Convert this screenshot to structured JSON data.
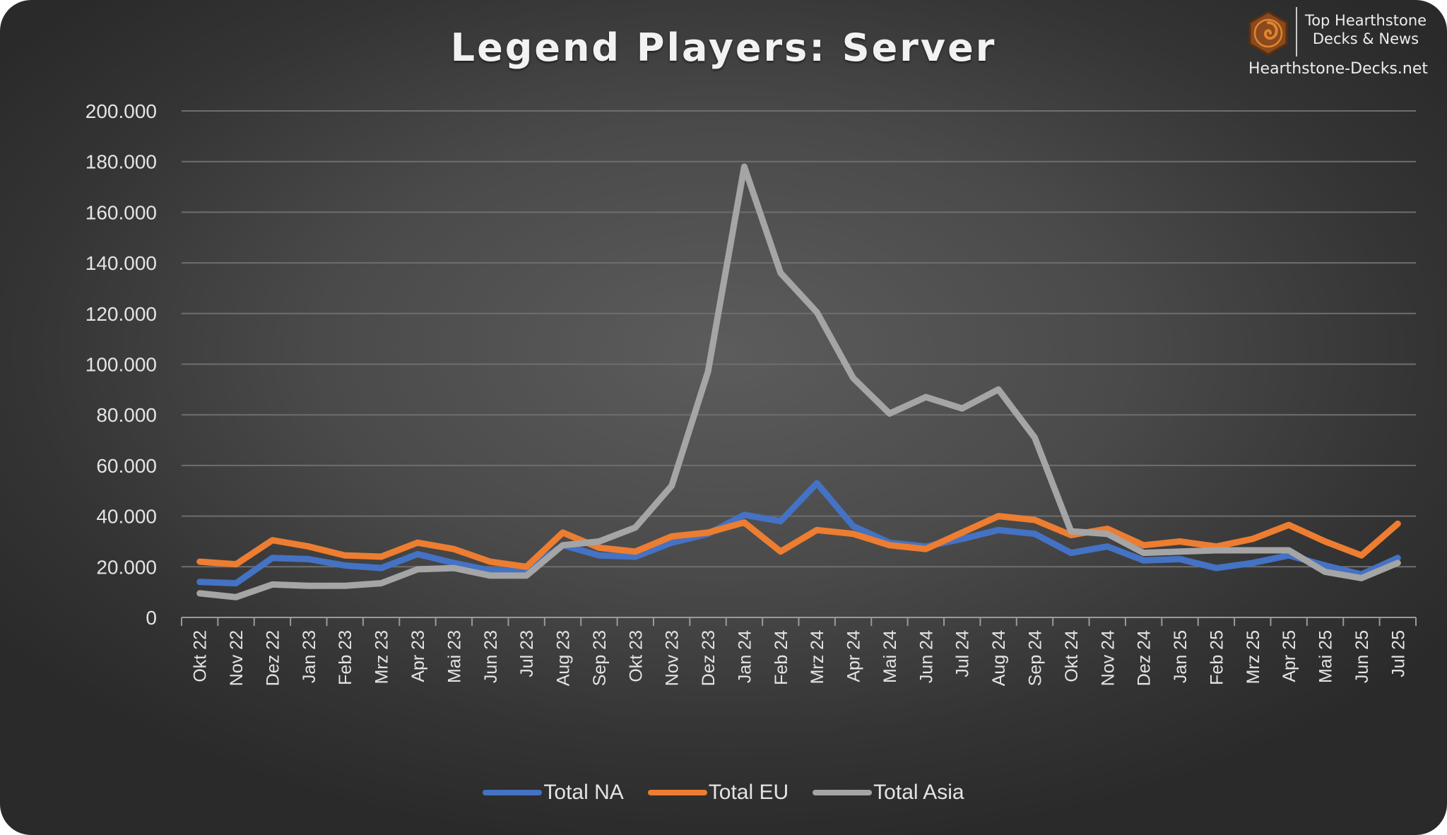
{
  "logo": {
    "line1": "Top Hearthstone",
    "line2": "Decks & News",
    "site": "Hearthstone-Decks.net",
    "icon": "hearthstone-logo-icon",
    "colors": {
      "hex": "#8a4a1e",
      "swirl": "#e0852f"
    }
  },
  "chart_data": {
    "type": "line",
    "title": "Legend Players: Server",
    "xlabel": "",
    "ylabel": "",
    "ylim": [
      0,
      200000
    ],
    "yticks": [
      0,
      20000,
      40000,
      60000,
      80000,
      100000,
      120000,
      140000,
      160000,
      180000,
      200000
    ],
    "ytick_labels": [
      "0",
      "20.000",
      "40.000",
      "60.000",
      "80.000",
      "100.000",
      "120.000",
      "140.000",
      "160.000",
      "180.000",
      "200.000"
    ],
    "grid": true,
    "legend_position": "bottom",
    "categories": [
      "Okt 22",
      "Nov 22",
      "Dez 22",
      "Jan 23",
      "Feb 23",
      "Mrz 23",
      "Apr 23",
      "Mai 23",
      "Jun 23",
      "Jul 23",
      "Aug 23",
      "Sep 23",
      "Okt 23",
      "Nov 23",
      "Dez 23",
      "Jan 24",
      "Feb 24",
      "Mrz 24",
      "Apr 24",
      "Mai 24",
      "Jun 24",
      "Jul 24",
      "Aug 24",
      "Sep 24",
      "Okt 24",
      "Nov 24",
      "Dez 24",
      "Jan 25",
      "Feb 25",
      "Mrz 25",
      "Apr 25",
      "Mai 25",
      "Jun 25",
      "Jul 25"
    ],
    "series": [
      {
        "name": "Total NA",
        "color": "#4472c4",
        "values": [
          14000,
          13500,
          23500,
          23000,
          20500,
          19500,
          25000,
          21500,
          18500,
          18500,
          28500,
          24500,
          24000,
          29500,
          33000,
          40500,
          38000,
          53000,
          36000,
          29500,
          28000,
          31000,
          34500,
          33000,
          25500,
          28000,
          22500,
          23000,
          19500,
          21500,
          24500,
          20500,
          17000,
          23500
        ]
      },
      {
        "name": "Total EU",
        "color": "#ed7d31",
        "values": [
          22000,
          21000,
          30500,
          28000,
          24500,
          24000,
          29500,
          27000,
          22000,
          20000,
          33500,
          27500,
          26000,
          32000,
          33500,
          37500,
          26000,
          34500,
          33000,
          28500,
          27000,
          33500,
          40000,
          38500,
          32500,
          35000,
          28500,
          30000,
          28000,
          31000,
          36500,
          30000,
          24500,
          37000
        ]
      },
      {
        "name": "Total Asia",
        "color": "#a5a5a5",
        "values": [
          9500,
          8000,
          13000,
          12500,
          12500,
          13500,
          19000,
          19500,
          16500,
          16500,
          28500,
          30000,
          35500,
          52000,
          97000,
          178000,
          136000,
          120500,
          94500,
          80500,
          87000,
          82500,
          90000,
          71000,
          34000,
          33000,
          25500,
          26000,
          26500,
          26500,
          26500,
          18000,
          15500,
          21500
        ]
      }
    ]
  }
}
